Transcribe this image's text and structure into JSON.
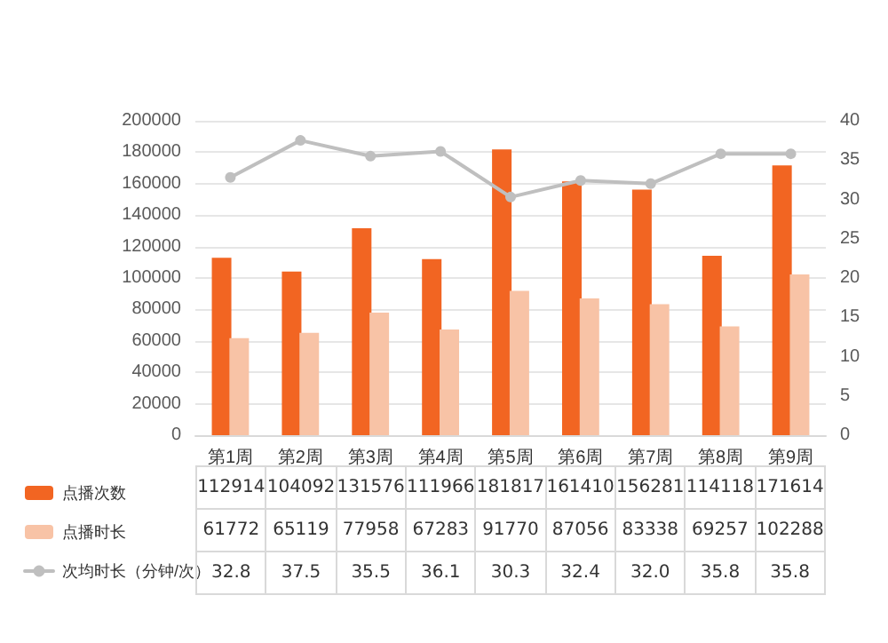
{
  "chart_data": {
    "type": "bar",
    "categories": [
      "第1周",
      "第2周",
      "第3周",
      "第4周",
      "第5周",
      "第6周",
      "第7周",
      "第8周",
      "第9周"
    ],
    "series": [
      {
        "name": "点播次数",
        "color": "#f26522",
        "values": [
          112914,
          104092,
          131576,
          111966,
          181817,
          161410,
          156281,
          114118,
          171614
        ],
        "value_labels": [
          "112914",
          "104092",
          "131576",
          "111966",
          "181817",
          "161410",
          "156281",
          "114118",
          "171614"
        ]
      },
      {
        "name": "点播时长",
        "color": "#f8c3a6",
        "values": [
          61772,
          65119,
          77958,
          67283,
          91770,
          87056,
          83338,
          69257,
          102288
        ],
        "value_labels": [
          "61772",
          "65119",
          "77958",
          "67283",
          "91770",
          "87056",
          "83338",
          "69257",
          "102288"
        ]
      },
      {
        "name": "次均时长（分钟/次）",
        "type": "line",
        "axis": "y2",
        "color": "#bfbfbf",
        "values": [
          32.8,
          37.5,
          35.5,
          36.1,
          30.3,
          32.4,
          32.0,
          35.8,
          35.8
        ],
        "value_labels": [
          "32.8",
          "37.5",
          "35.5",
          "36.1",
          "30.3",
          "32.4",
          "32.0",
          "35.8",
          "35.8"
        ]
      }
    ],
    "ylim": [
      0,
      200000
    ],
    "yticks": [
      0,
      20000,
      40000,
      60000,
      80000,
      100000,
      120000,
      140000,
      160000,
      180000,
      200000
    ],
    "y2lim": [
      0,
      40
    ],
    "y2ticks": [
      0,
      5,
      10,
      15,
      20,
      25,
      30,
      35,
      40
    ],
    "grid": "y",
    "legend": "bottom left",
    "marker": "circle",
    "line_style": "solid"
  }
}
